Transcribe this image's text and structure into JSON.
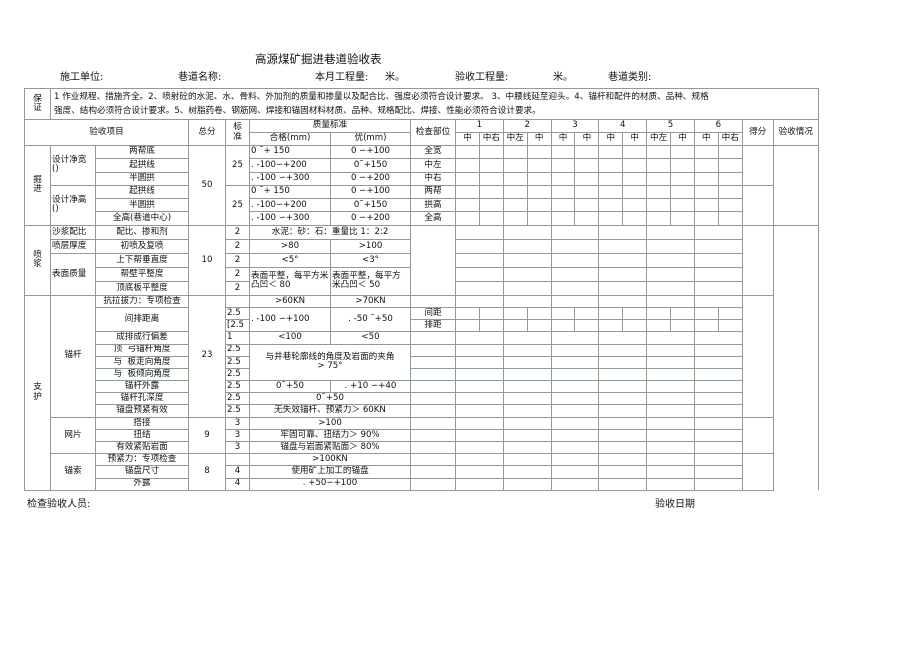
{
  "title": "高源煤矿掘进巷道验收表",
  "info": {
    "unit_label": "施工单位:",
    "road_label": "巷道名称:",
    "month_label": "本月工程量:",
    "month_unit": "米。",
    "accept_label": "验收工程量:",
    "accept_unit": "米。",
    "type_label": "巷道类别:"
  },
  "guarantee": {
    "label_1": "保",
    "label_2": "证",
    "line_1": "1 作业规程、措施齐全。2、喷射砼的水泥、水、骨料、外加剂的质量和掺量以及配合比、强度必须符合设计要求。        3、中腰线延至迎头。4、锚杆和配件的材质、品种、规格",
    "line_2": "强度、结构必须符合设计要求。5、树脂药卷、钢筋网、焊接和锚固材料材质、品种、规格配比、焊接、性能必须符合设计要求。"
  },
  "header": {
    "item": "验收项目",
    "total": "总分",
    "std_1": "标",
    "std_2": "准",
    "quality": "质量标准",
    "pass": "合格(mm)",
    "excellent": "优(mm)",
    "position": "检查部位",
    "groups": [
      "1",
      "2",
      "3",
      "4",
      "5",
      "6"
    ],
    "subs": [
      "中",
      "中右",
      "中左",
      "中",
      "中",
      "中",
      "中",
      "中",
      "中左",
      "中",
      "中",
      "中右"
    ],
    "score": "得分",
    "result": "验收情况"
  },
  "excavation": {
    "cat_1": "掘",
    "cat_2": "进",
    "total": "50",
    "width": {
      "label": "设计净宽",
      "paren": "()",
      "std": "25"
    },
    "height": {
      "label": "设计净高",
      "paren": "()",
      "std": "25"
    },
    "rows": [
      {
        "item": "两帮底",
        "pass": "0 ˜+ 150",
        "excellent": "0 ∽+100",
        "position": "全宽"
      },
      {
        "item": "起拱线",
        "pass": ". -100∽+200",
        "excellent": "0˜+150",
        "position": "中左"
      },
      {
        "item": "半圆拱",
        "pass": ". -100 ∽+300",
        "excellent": "0 ∽+200",
        "position": "中右"
      },
      {
        "item": "起拱线",
        "pass": "0 ˜+ 150",
        "excellent": "0 ∽+100",
        "position": "两帮"
      },
      {
        "item": "半圆拱",
        "pass": ". -100∽+200",
        "excellent": "0˜+150",
        "position": "拱高"
      },
      {
        "item": "全高(巷道中心)",
        "pass": ". -100 ∽+300",
        "excellent": "0 ∽+200",
        "position": "全高"
      }
    ]
  },
  "spray": {
    "cat_1": "喷",
    "cat_2": "浆",
    "total": "10",
    "rows": [
      {
        "sub": "沙浆配比",
        "item": "配比、掺和剂",
        "std": "2",
        "merged": "水泥：砂：石：重量比 1：2:2"
      },
      {
        "sub": "喷层厚度",
        "item": "初喷及复喷",
        "std": "2",
        "pass": ">80",
        "excellent": ">100"
      },
      {
        "sub": "表面质量",
        "item": "上下帮垂直度",
        "std": "2",
        "pass": "<5°",
        "excellent": "<3°"
      },
      {
        "item": "帮壁平整度",
        "std": "2",
        "pass": "表面平整，每平方米凸凹＜ 80",
        "excellent": "表面平整，每平方米凸凹＜ 50"
      },
      {
        "item": "顶底板平整度",
        "std": "2"
      }
    ]
  },
  "support": {
    "cat_1": "支",
    "cat_2": "护",
    "bolt": {
      "label": "锚杆",
      "total": "23",
      "pull": {
        "item": "抗拉拔力：专项检查",
        "pass": ">60KN",
        "excellent": ">70KN"
      },
      "spacing": {
        "item": "间排距离",
        "std_1": "2.5",
        "std_2": "[2.5",
        "pass": ". -100 ∽+100",
        "excellent": ". -50 ˜+50",
        "pos_1": "间距",
        "pos_2": "排距"
      },
      "row_dev": {
        "item": "成排成行偏差",
        "std": "1",
        "pass": "<100",
        "excellent": "<50"
      },
      "angle": {
        "pre_1": "顶",
        "item_1": "弓锚杆角度",
        "pre_2": "与",
        "item_2": "板走向角度",
        "pre_3": "与",
        "item_3": "板倾向角度",
        "std": "2.5",
        "text_1": "与井巷轮廓线的角度及岩面的夹角",
        "text_2": "> 75°"
      },
      "expose": {
        "item": "锚杆外露",
        "std": "2.5",
        "pass": "0˜+50",
        "excellent": ". +10 ∽+40"
      },
      "depth": {
        "item": "锚杆孔深度",
        "std": "2.5",
        "merged": "0˜+50"
      },
      "preload": {
        "item": "锚盘预紧有效",
        "std": "2.5",
        "merged": "无失效锚杆、预紧力＞  60KN"
      }
    },
    "mesh": {
      "label": "网片",
      "total": "9",
      "rows": [
        {
          "item": "搭接",
          "std": "3",
          "merged": ">100"
        },
        {
          "item": "扭结",
          "std": "3",
          "merged": "牢固可靠、扭结力＞  90%"
        },
        {
          "item": "有效紧贴岩面",
          "std": "3",
          "merged": "锚盘与岩面紧贴面＞  80%"
        }
      ]
    },
    "cable": {
      "label": "锚索",
      "total": "8",
      "rows": [
        {
          "item": "预紧力：专项检查",
          "std": "",
          "merged": ">100KN"
        },
        {
          "item": "锚盘尺寸",
          "std": "4",
          "merged": "使用矿上加工的锚盘"
        },
        {
          "item": "外露",
          "std": "4",
          "merged": ". +50∽+100"
        }
      ]
    }
  },
  "footer": {
    "inspector_label": "检查验收人员:",
    "date_label": "验收日期"
  }
}
